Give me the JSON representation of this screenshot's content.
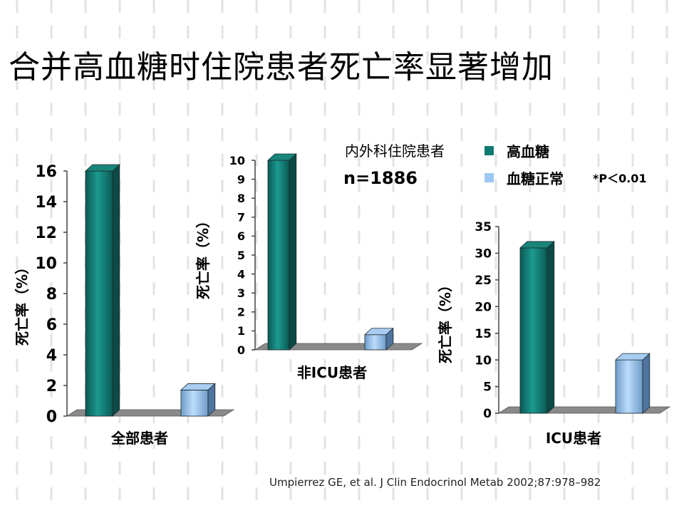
{
  "slide": {
    "title": "合并高血糖时住院患者死亡率显著增加",
    "legend_heading": "内外科住院患者",
    "sample_label": "n=1886",
    "p_note": "*P＜0.01",
    "citation": "Umpierrez GE, et al. J Clin Endocrinol Metab 2002;87:978–982"
  },
  "legend": [
    {
      "label": "高血糖",
      "color": "#0f7a72"
    },
    {
      "label": "血糖正常",
      "color": "#9cc8f2"
    }
  ],
  "chart_data": [
    {
      "type": "bar",
      "xlabel": "全部患者",
      "ylabel": "死亡率（%）",
      "ylim": [
        0,
        16
      ],
      "yticks": [
        0,
        2,
        4,
        6,
        8,
        10,
        12,
        14,
        16
      ],
      "series": [
        {
          "name": "高血糖",
          "values": [
            16
          ]
        },
        {
          "name": "血糖正常",
          "values": [
            1.7
          ]
        }
      ]
    },
    {
      "type": "bar",
      "xlabel": "非ICU患者",
      "ylabel": "死亡率（%）",
      "ylim": [
        0,
        10
      ],
      "yticks": [
        0,
        1,
        2,
        3,
        4,
        5,
        6,
        7,
        8,
        9,
        10
      ],
      "series": [
        {
          "name": "高血糖",
          "values": [
            10
          ]
        },
        {
          "name": "血糖正常",
          "values": [
            0.8
          ]
        }
      ]
    },
    {
      "type": "bar",
      "xlabel": "ICU患者",
      "ylabel": "死亡率（%）",
      "ylim": [
        0,
        35
      ],
      "yticks": [
        0,
        5,
        10,
        15,
        20,
        25,
        30,
        35
      ],
      "series": [
        {
          "name": "高血糖",
          "values": [
            31
          ]
        },
        {
          "name": "血糖正常",
          "values": [
            10
          ]
        }
      ]
    }
  ]
}
